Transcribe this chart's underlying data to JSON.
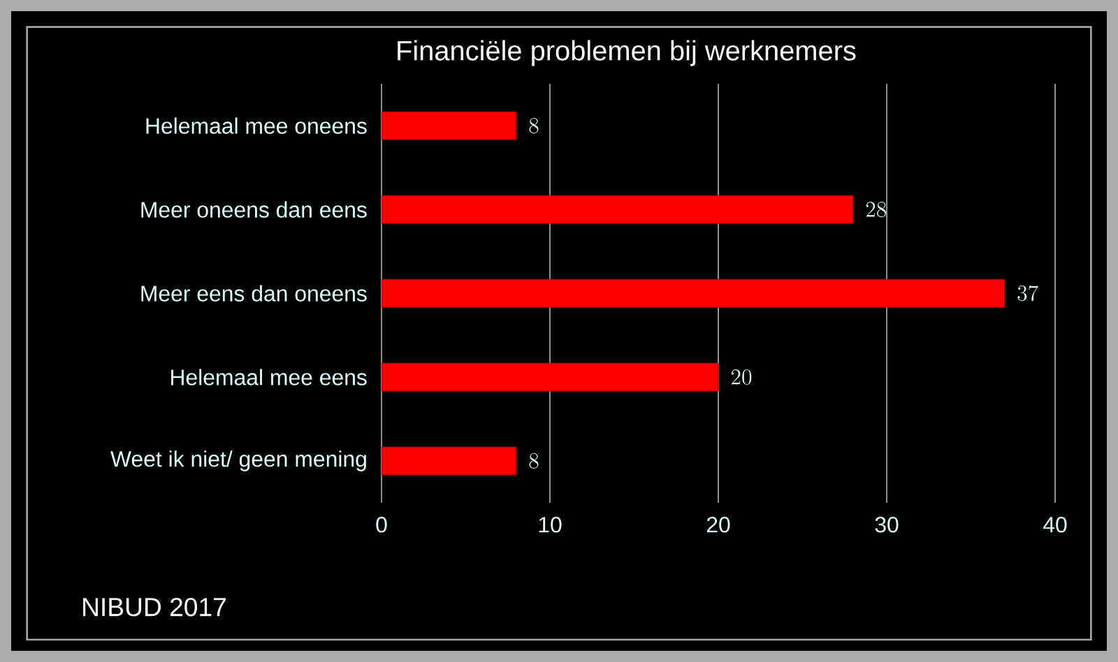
{
  "chart_data": {
    "type": "bar",
    "orientation": "horizontal",
    "title": "Financiële problemen bij werknemers",
    "categories": [
      "Helemaal mee oneens",
      "Meer oneens dan eens",
      "Meer eens dan oneens",
      "Helemaal mee eens",
      "Weet ik niet/ geen mening"
    ],
    "values": [
      8,
      28,
      37,
      20,
      8
    ],
    "color": "#ff0000",
    "xlim": [
      0,
      40
    ],
    "xticks": [
      0,
      10,
      20,
      30,
      40
    ],
    "grid": "x",
    "data_labels": true,
    "annotations": [
      "NIBUD 2017"
    ]
  }
}
